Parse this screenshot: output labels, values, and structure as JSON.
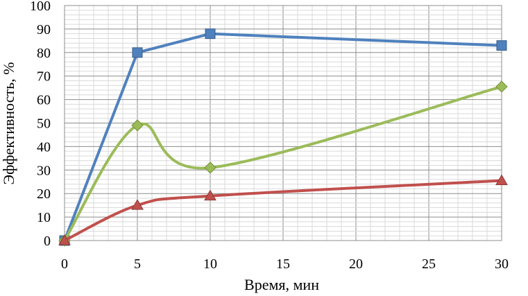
{
  "chart_data": {
    "type": "line",
    "xlabel": "Время, мин",
    "ylabel": "Эффективность, %",
    "xlim": [
      0,
      30
    ],
    "ylim": [
      0,
      100
    ],
    "x_ticks": [
      "0",
      "5",
      "10",
      "15",
      "20",
      "25",
      "30"
    ],
    "y_ticks": [
      "0",
      "10",
      "20",
      "30",
      "40",
      "50",
      "60",
      "70",
      "80",
      "90",
      "100"
    ],
    "grid": true,
    "legend": "none",
    "series": [
      {
        "color": "#4f81bd",
        "marker": "square",
        "smooth": false,
        "x": [
          0,
          5,
          10,
          30
        ],
        "y": [
          0,
          80,
          88,
          83
        ]
      },
      {
        "color": "#9bbb59",
        "marker": "diamond",
        "smooth": true,
        "x": [
          0,
          5,
          10,
          30
        ],
        "y": [
          0,
          49,
          31,
          65.5
        ]
      },
      {
        "color": "#c0504d",
        "marker": "triangle",
        "smooth": true,
        "x": [
          0,
          5,
          10,
          30
        ],
        "y": [
          0,
          15,
          19,
          25.5
        ]
      }
    ]
  }
}
